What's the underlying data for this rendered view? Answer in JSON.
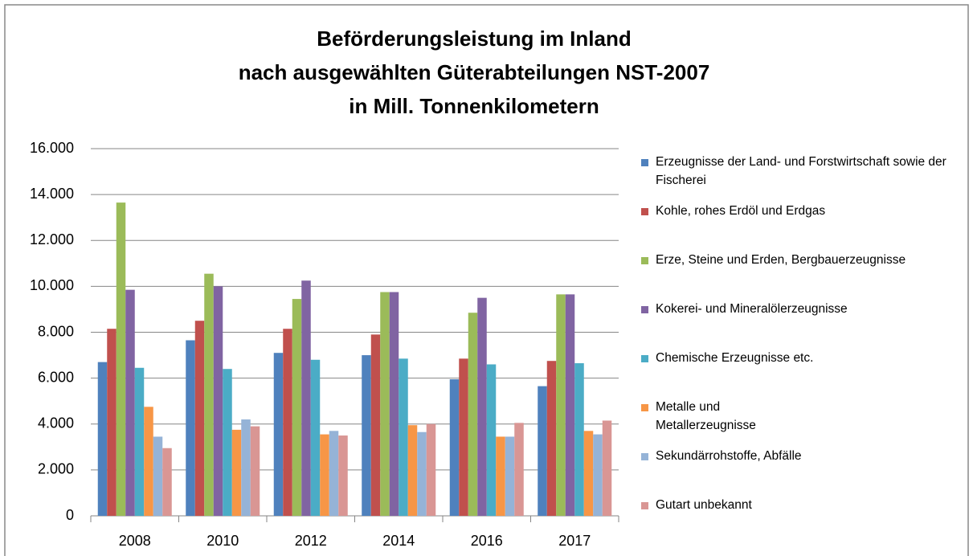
{
  "chart_data": {
    "type": "bar",
    "title": [
      "Beförderungsleistung im Inland",
      "nach ausgewählten Güterabteilungen NST-2007",
      "in Mill. Tonnenkilometern"
    ],
    "categories": [
      "2008",
      "2010",
      "2012",
      "2014",
      "2016",
      "2017"
    ],
    "series": [
      {
        "name": "Erzeugnisse der Land- und Forstwirtschaft sowie der Fischerei",
        "color": "#4f81bd",
        "values": [
          6700,
          7650,
          7100,
          7000,
          5950,
          5650
        ]
      },
      {
        "name": "Kohle, rohes Erdöl und Erdgas",
        "color": "#c0504d",
        "values": [
          8150,
          8500,
          8150,
          7900,
          6850,
          6750
        ]
      },
      {
        "name": "Erze, Steine und Erden, Bergbauerzeugnisse",
        "color": "#9bbb59",
        "values": [
          13650,
          10550,
          9450,
          9750,
          8850,
          9650
        ]
      },
      {
        "name": "Kokerei- und Mineralölerzeugnisse",
        "color": "#8064a2",
        "values": [
          9850,
          10000,
          10250,
          9750,
          9500,
          9650
        ]
      },
      {
        "name": "Chemische Erzeugnisse etc.",
        "color": "#4bacc6",
        "values": [
          6450,
          6400,
          6800,
          6850,
          6600,
          6650
        ]
      },
      {
        "name": "Metalle und Metallerzeugnisse",
        "color": "#f79646",
        "values": [
          4750,
          3750,
          3550,
          3950,
          3450,
          3700
        ]
      },
      {
        "name": "Sekundärrohstoffe, Abfälle",
        "color": "#95b3d7",
        "values": [
          3450,
          4200,
          3700,
          3650,
          3450,
          3550
        ]
      },
      {
        "name": "Gutart unbekannt",
        "color": "#d99694",
        "values": [
          2950,
          3900,
          3500,
          4000,
          4050,
          4150
        ]
      }
    ],
    "ylim": [
      0,
      16000
    ],
    "yticks": [
      0,
      {
        "value": 2000,
        "label": "2.000"
      },
      {
        "value": 4000,
        "label": "4.000"
      },
      {
        "value": 6000,
        "label": "6.000"
      },
      {
        "value": 8000,
        "label": "8.000"
      },
      {
        "value": 10000,
        "label": "10.000"
      },
      {
        "value": 12000,
        "label": "12.000"
      },
      {
        "value": 14000,
        "label": "14.000"
      },
      {
        "value": 16000,
        "label": "16.000"
      }
    ],
    "grid": true,
    "legend": "right"
  }
}
